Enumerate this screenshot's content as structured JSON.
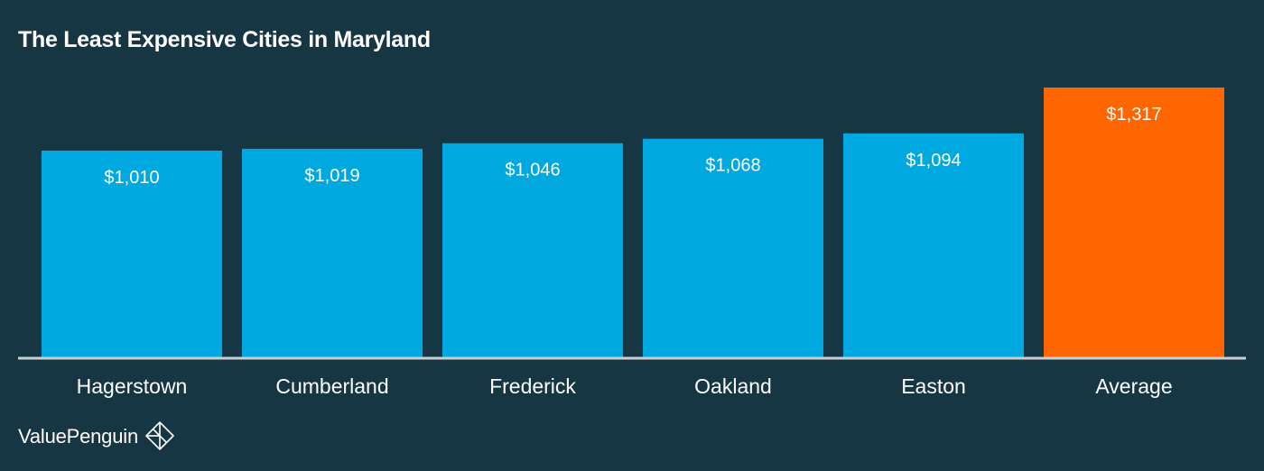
{
  "chart_data": {
    "type": "bar",
    "title": "The Least Expensive Cities in Maryland",
    "xlabel": "",
    "ylabel": "",
    "categories": [
      "Hagerstown",
      "Cumberland",
      "Frederick",
      "Oakland",
      "Easton",
      "Average"
    ],
    "values": [
      1010,
      1019,
      1046,
      1068,
      1094,
      1317
    ],
    "value_labels": [
      "$1,010",
      "$1,019",
      "$1,046",
      "$1,068",
      "$1,094",
      "$1,317"
    ],
    "ylim": [
      0,
      1317
    ],
    "grid": false,
    "legend": "none",
    "colors": {
      "bar": "#00a8e0",
      "highlight": "#ff6600",
      "baseline": "#c8cfd3",
      "background": "#173644",
      "text": "#ffffff"
    },
    "highlight_category": "Average"
  },
  "brand": {
    "name": "ValuePenguin",
    "icon": "valuepenguin-logo-icon"
  }
}
